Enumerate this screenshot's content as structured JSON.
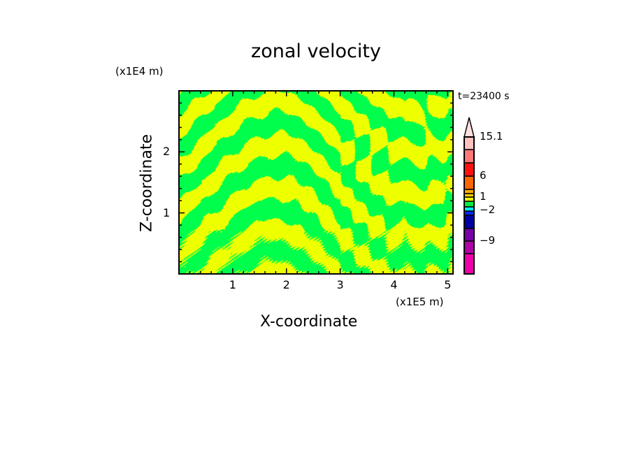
{
  "chart_data": {
    "type": "heatmap",
    "title": "zonal velocity",
    "xlabel": "X-coordinate",
    "ylabel": "Z-coordinate",
    "x_unit": "(x1E5 m)",
    "y_unit": "(x1E4 m)",
    "time_label": "t=23400 s",
    "xlim": [
      0,
      5.1
    ],
    "ylim": [
      0,
      3.0
    ],
    "x_ticks": [
      1,
      2,
      3,
      4,
      5
    ],
    "x_tick_labels": [
      "1",
      "2",
      "3",
      "4",
      "5"
    ],
    "y_ticks": [
      1,
      2
    ],
    "y_tick_labels": [
      "1",
      "2"
    ],
    "field_colors": {
      "positive_small": "#eeff00",
      "negative_small": "#00ff4c"
    },
    "colorbar": {
      "segments_bottom_to_top": [
        "#ee00aa",
        "#b000a8",
        "#7a00aa",
        "#0000a0",
        "#0028ff",
        "#00eeff",
        "#00ee44",
        "#eeff00",
        "#ffcc00",
        "#ffaa00",
        "#ff6600",
        "#ff1111",
        "#ff7777",
        "#ffc0c0"
      ],
      "extend_color": "#ffe0e0",
      "labels": [
        {
          "text": "15.1",
          "value": 15.1
        },
        {
          "text": "6",
          "value": 6
        },
        {
          "text": "1",
          "value": 1
        },
        {
          "text": "-2",
          "value": -2
        },
        {
          "text": "-9",
          "value": -9
        }
      ]
    }
  }
}
